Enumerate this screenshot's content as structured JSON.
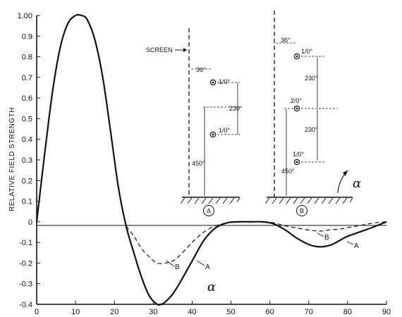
{
  "chart_data": {
    "type": "line",
    "title": "",
    "xlabel": "α",
    "ylabel": "RELATIVE FIELD STRENGTH",
    "xlim": [
      0,
      90
    ],
    "ylim": [
      -0.4,
      1.0
    ],
    "x_ticks": [
      "0",
      "10",
      "20",
      "30",
      "40",
      "50",
      "60",
      "70",
      "80",
      "90"
    ],
    "y_ticks": [
      "1.00",
      "0.9",
      "0.8",
      "0.7",
      "0.6",
      "0.5",
      "0.4",
      "0.3",
      "0.2",
      "0.1",
      "0",
      "-0.1",
      "-0.2",
      "-0.3",
      "-0.4"
    ],
    "series": [
      {
        "name": "A",
        "style": "solid",
        "x": [
          0,
          2,
          4,
          6,
          8,
          10,
          11.5,
          13,
          15,
          17,
          19,
          21,
          23,
          25,
          27,
          29,
          31,
          32,
          33,
          35,
          37,
          40,
          43,
          46,
          49,
          52,
          55,
          58,
          61,
          64,
          67,
          70,
          72,
          74,
          76,
          78,
          80,
          83,
          86,
          88,
          90
        ],
        "y": [
          0,
          0.32,
          0.62,
          0.84,
          0.96,
          1.0,
          1.0,
          0.98,
          0.88,
          0.7,
          0.44,
          0.17,
          -0.02,
          -0.15,
          -0.27,
          -0.36,
          -0.4,
          -0.4,
          -0.39,
          -0.35,
          -0.29,
          -0.19,
          -0.09,
          -0.03,
          -0.005,
          0,
          0,
          0,
          -0.01,
          -0.04,
          -0.08,
          -0.11,
          -0.12,
          -0.12,
          -0.11,
          -0.09,
          -0.07,
          -0.05,
          -0.03,
          -0.015,
          0
        ]
      },
      {
        "name": "B",
        "style": "dashed",
        "x": [
          23,
          25,
          27,
          29,
          31,
          33,
          35,
          37,
          40,
          43,
          46,
          49,
          52,
          55,
          58,
          61,
          64,
          67,
          70,
          73,
          75,
          78,
          81,
          84,
          87,
          90
        ],
        "y": [
          -0.02,
          -0.07,
          -0.13,
          -0.17,
          -0.2,
          -0.2,
          -0.19,
          -0.16,
          -0.1,
          -0.05,
          -0.02,
          -0.005,
          0,
          0,
          0,
          -0.005,
          -0.02,
          -0.03,
          -0.04,
          -0.045,
          -0.04,
          -0.035,
          -0.025,
          -0.015,
          -0.005,
          0
        ]
      }
    ],
    "curve_labels": [
      "A",
      "B",
      "A",
      "B"
    ],
    "grid": false,
    "legend": "none"
  },
  "inset": {
    "screen_label": "SCREEN",
    "panel_a": {
      "badge": "A",
      "top_spacing": "36°",
      "upper_element": "1/0°",
      "middle_spacing": "230°",
      "lower_element": "1/0°",
      "height": "450°"
    },
    "panel_b": {
      "badge": "B",
      "top_spacing": "36°",
      "upper_element": "1/0°",
      "upper_spacing": "230°",
      "middle_element": "2/0°",
      "lower_spacing": "230°",
      "lower_element": "1/0°",
      "height": "450°"
    },
    "angle_label": "α"
  }
}
